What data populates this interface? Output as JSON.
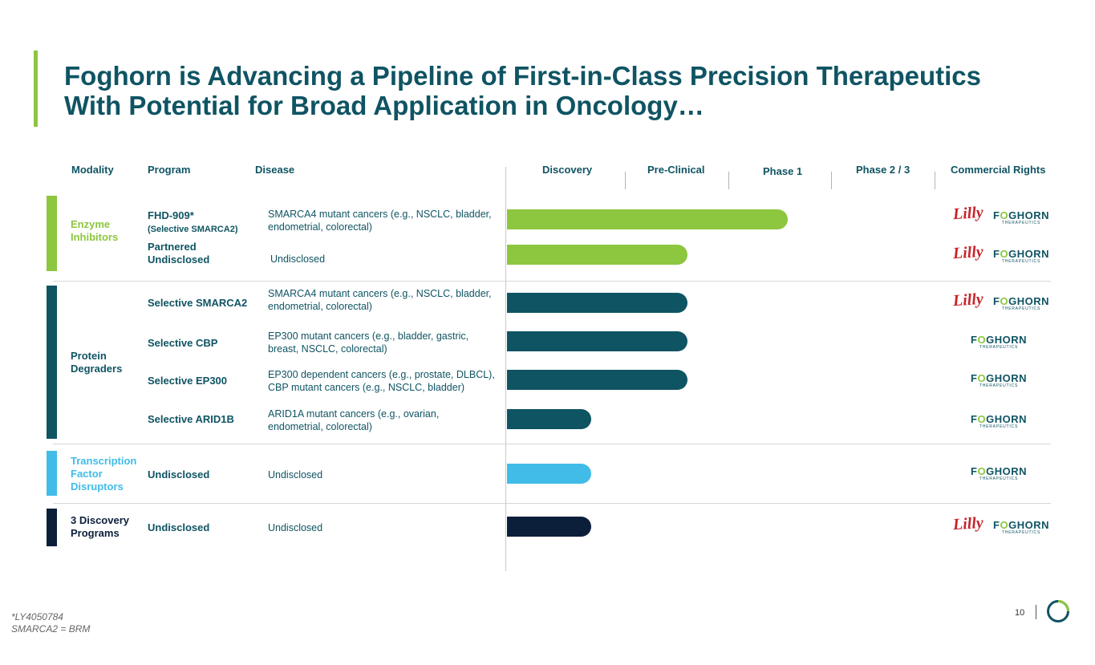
{
  "title_line1": "Foghorn is Advancing a Pipeline of First-in-Class Precision Therapeutics",
  "title_line2": "With Potential for Broad Application in Oncology…",
  "headers": {
    "modality": "Modality",
    "program": "Program",
    "disease": "Disease",
    "discovery": "Discovery",
    "preclinical": "Pre-Clinical",
    "phase1": "Phase 1",
    "phase23": "Phase 2 / 3",
    "rights": "Commercial Rights"
  },
  "categories": [
    {
      "label": "Enzyme Inhibitors",
      "color": "#8dc63f"
    },
    {
      "label": "Protein Degraders",
      "color": "#0f5463"
    },
    {
      "label": "Transcription Factor Disruptors",
      "color": "#41bce8"
    },
    {
      "label": "3 Discovery Programs",
      "color": "#0b1f3a"
    }
  ],
  "stages": [
    "Discovery",
    "Pre-Clinical",
    "Phase 1",
    "Phase 2 / 3"
  ],
  "rows": [
    {
      "program": "FHD-909*",
      "program_sub": "(Selective SMARCA2)",
      "disease": "SMARCA4 mutant cancers (e.g., NSCLC, bladder, endometrial, colorectal)",
      "progress_stages": 2.72,
      "color": "#8dc63f",
      "rights": [
        "Lilly",
        "FOGHORN"
      ]
    },
    {
      "program": "Partnered Undisclosed",
      "program_sub": "",
      "disease": "Undisclosed",
      "progress_stages": 1.75,
      "color": "#8dc63f",
      "rights": [
        "Lilly",
        "FOGHORN"
      ]
    },
    {
      "program": "Selective SMARCA2",
      "program_sub": "",
      "disease": "SMARCA4 mutant cancers (e.g., NSCLC, bladder, endometrial, colorectal)",
      "progress_stages": 1.75,
      "color": "#0f5463",
      "rights": [
        "Lilly",
        "FOGHORN"
      ]
    },
    {
      "program": "Selective CBP",
      "program_sub": "",
      "disease": "EP300 mutant cancers (e.g., bladder, gastric, breast, NSCLC, colorectal)",
      "progress_stages": 1.75,
      "color": "#0f5463",
      "rights": [
        "FOGHORN"
      ]
    },
    {
      "program": "Selective EP300",
      "program_sub": "",
      "disease": "EP300 dependent cancers (e.g., prostate, DLBCL), CBP mutant cancers (e.g., NSCLC, bladder)",
      "progress_stages": 1.75,
      "color": "#0f5463",
      "rights": [
        "FOGHORN"
      ]
    },
    {
      "program": "Selective ARID1B",
      "program_sub": "",
      "disease": "ARID1A mutant cancers (e.g., ovarian, endometrial, colorectal)",
      "progress_stages": 0.82,
      "color": "#0f5463",
      "rights": [
        "FOGHORN"
      ]
    },
    {
      "program": "Undisclosed",
      "program_sub": "",
      "disease": "Undisclosed",
      "progress_stages": 0.82,
      "color": "#41bce8",
      "rights": [
        "FOGHORN"
      ]
    },
    {
      "program": "Undisclosed",
      "program_sub": "",
      "disease": "Undisclosed",
      "progress_stages": 0.82,
      "color": "#0b1f3a",
      "rights": [
        "Lilly",
        "FOGHORN"
      ]
    }
  ],
  "logos": {
    "lilly": "Lilly",
    "foghorn_name": "FOGHORN",
    "foghorn_sub": "THERAPEUTICS"
  },
  "footnote1": "*LY4050784",
  "footnote2": "SMARCA2 = BRM",
  "page_number": "10"
}
